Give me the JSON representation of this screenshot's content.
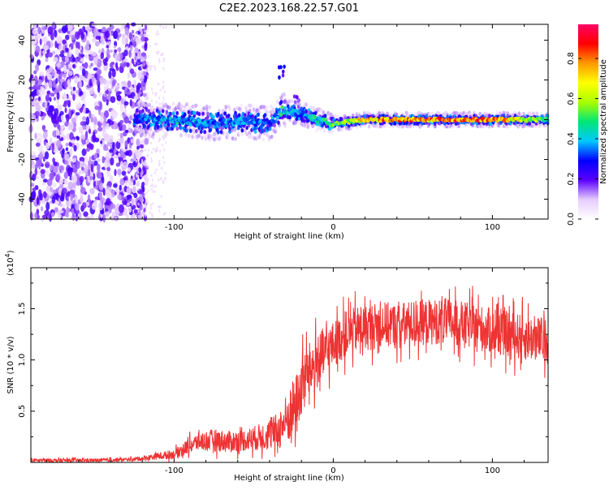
{
  "title": "C2E2.2023.168.22.57.G01",
  "chart_data": [
    {
      "type": "heatmap",
      "xlabel": "Height of straight line (km)",
      "ylabel": "Frequency (Hz)",
      "xlim": [
        -190,
        135
      ],
      "ylim": [
        -50,
        48
      ],
      "xticks": [
        -100,
        0,
        100
      ],
      "yticks": [
        -40,
        -20,
        0,
        20,
        40
      ],
      "colorbar": {
        "label": "Normalized spectral amplitude",
        "range": [
          0,
          0.97
        ],
        "ticks": [
          0.0,
          0.2,
          0.4,
          0.6,
          0.8
        ],
        "colors": [
          "#ffffff",
          "#e6ccff",
          "#5a00ff",
          "#0000ff",
          "#00c8ff",
          "#00e676",
          "#aaff00",
          "#ffff00",
          "#ff9900",
          "#ff0000",
          "#ff0066"
        ]
      },
      "ridge": {
        "description_points_x": [
          -125,
          -100,
          -75,
          -55,
          -40,
          -32,
          -20,
          -10,
          0,
          20,
          60,
          100,
          120,
          135
        ],
        "frequency_y": [
          0,
          0,
          -2,
          -1,
          -2,
          5,
          3,
          0,
          -2,
          0,
          0,
          0,
          0,
          0
        ],
        "amplitude": [
          0.35,
          0.45,
          0.4,
          0.4,
          0.35,
          0.5,
          0.4,
          0.5,
          0.55,
          0.8,
          0.9,
          0.9,
          0.7,
          0.6
        ]
      },
      "noise_region_x": [
        -190,
        -125
      ],
      "features": [
        {
          "x": -32,
          "y": 24,
          "amplitude": 0.3
        },
        {
          "x": -23,
          "y": 10,
          "amplitude": 0.2
        }
      ]
    },
    {
      "type": "line",
      "xlabel": "Height of straight line (km)",
      "ylabel": "SNR (10 * v/v)",
      "multiplier_label": "(x10",
      "multiplier_exp": "4",
      "multiplier_close": ")",
      "xlim": [
        -190,
        135
      ],
      "ylim": [
        0,
        1.9
      ],
      "xticks": [
        -100,
        0,
        100
      ],
      "yticks": [
        0.5,
        1.0,
        1.5
      ],
      "ytick_labels": [
        "0.5",
        "1.0",
        "1.5"
      ],
      "series": [
        {
          "color": "#ee3333",
          "x": [
            -190,
            -150,
            -125,
            -115,
            -100,
            -92,
            -85,
            -75,
            -65,
            -55,
            -45,
            -35,
            -28,
            -22,
            -18,
            -12,
            -6,
            0,
            8,
            15,
            22,
            30,
            40,
            50,
            60,
            70,
            80,
            90,
            100,
            110,
            120,
            130,
            135
          ],
          "values": [
            0.02,
            0.02,
            0.03,
            0.05,
            0.08,
            0.15,
            0.2,
            0.22,
            0.2,
            0.22,
            0.25,
            0.3,
            0.45,
            0.6,
            0.85,
            0.95,
            1.05,
            1.15,
            1.25,
            1.3,
            1.32,
            1.35,
            1.33,
            1.36,
            1.37,
            1.38,
            1.35,
            1.32,
            1.28,
            1.25,
            1.22,
            1.2,
            1.18
          ],
          "noise": [
            0.02,
            0.02,
            0.02,
            0.03,
            0.05,
            0.08,
            0.1,
            0.12,
            0.12,
            0.12,
            0.15,
            0.2,
            0.3,
            0.35,
            0.3,
            0.3,
            0.3,
            0.25,
            0.25,
            0.25,
            0.25,
            0.25,
            0.25,
            0.25,
            0.25,
            0.25,
            0.25,
            0.25,
            0.25,
            0.25,
            0.25,
            0.25,
            0.25
          ]
        }
      ]
    }
  ]
}
